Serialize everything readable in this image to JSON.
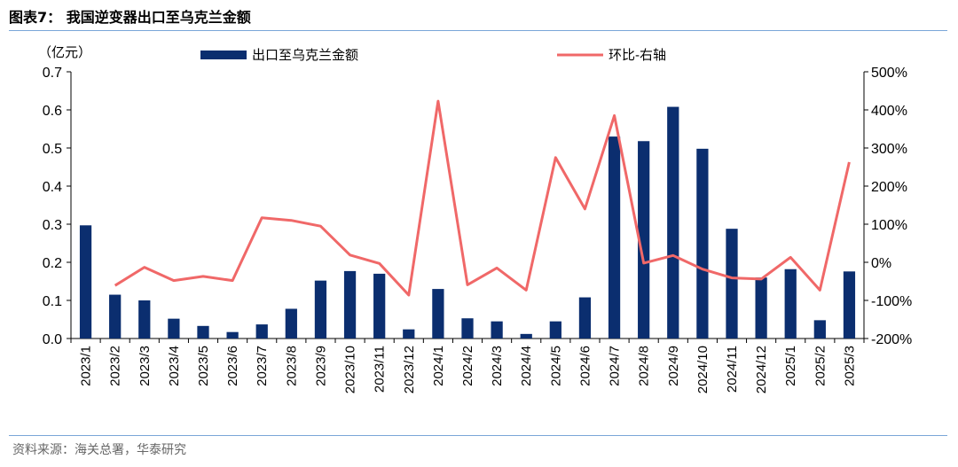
{
  "figure": {
    "title": "图表7：  我国逆变器出口至乌克兰金额",
    "source": "资料来源：海关总署，华泰研究"
  },
  "chart_data": {
    "type": "bar+line",
    "left_unit": "（亿元）",
    "categories": [
      "2023/1",
      "2023/2",
      "2023/3",
      "2023/4",
      "2023/5",
      "2023/6",
      "2023/7",
      "2023/8",
      "2023/9",
      "2023/10",
      "2023/11",
      "2023/12",
      "2024/1",
      "2024/2",
      "2024/3",
      "2024/4",
      "2024/5",
      "2024/6",
      "2024/7",
      "2024/8",
      "2024/9",
      "2024/10",
      "2024/11",
      "2024/12",
      "2025/1",
      "2025/2",
      "2025/3"
    ],
    "series": [
      {
        "name": "出口至乌克兰金额",
        "type": "bar",
        "axis": "left",
        "color": "#0b2e6f",
        "values": [
          0.297,
          0.115,
          0.1,
          0.052,
          0.033,
          0.017,
          0.037,
          0.078,
          0.152,
          0.177,
          0.17,
          0.024,
          0.13,
          0.053,
          0.045,
          0.012,
          0.045,
          0.108,
          0.53,
          0.518,
          0.608,
          0.498,
          0.288,
          0.16,
          0.182,
          0.048,
          0.176
        ]
      },
      {
        "name": "环比-右轴",
        "type": "line",
        "axis": "right",
        "color": "#f06868",
        "values": [
          null,
          -61,
          -13,
          -48,
          -37,
          -48,
          117,
          110,
          95,
          19,
          -3,
          -86,
          423,
          -59,
          -15,
          -73,
          275,
          140,
          385,
          -2,
          18,
          -18,
          -41,
          -44,
          13,
          -73,
          263
        ]
      }
    ],
    "y_left": {
      "min": 0,
      "max": 0.7,
      "ticks": [
        0.0,
        0.1,
        0.2,
        0.3,
        0.4,
        0.5,
        0.6,
        0.7
      ],
      "tick_labels": [
        "0.0",
        "0.1",
        "0.2",
        "0.3",
        "0.4",
        "0.5",
        "0.6",
        "0.7"
      ]
    },
    "y_right": {
      "min": -200,
      "max": 500,
      "ticks": [
        -200,
        -100,
        0,
        100,
        200,
        300,
        400,
        500
      ],
      "tick_labels": [
        "-200%",
        "-100%",
        "0%",
        "100%",
        "200%",
        "300%",
        "400%",
        "500%"
      ]
    },
    "legend": "top",
    "grid": false
  }
}
